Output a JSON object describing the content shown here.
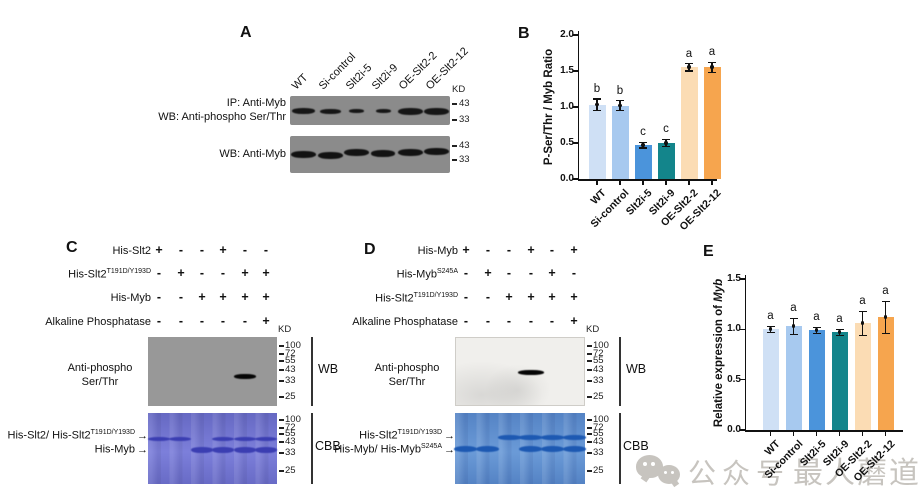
{
  "watermark": {
    "icon": "wechat-icon",
    "text_account": "公众号",
    "text_name": "最人蘑道"
  },
  "icons": {
    "arrow_right": "→"
  },
  "panel_a": {
    "letter": "A",
    "lanes": [
      "WT",
      "Si-control",
      "Slt2i-5",
      "Slt2i-9",
      "OE-Slt2-2",
      "OE-Slt2-12"
    ],
    "kd_label": "KD",
    "ip_label": "IP: Anti-Myb",
    "wb_phospho_label": "WB: Anti-phospho Ser/Thr",
    "wb_myb_label": "WB: Anti-Myb",
    "blot1_markers": [
      "43",
      "33"
    ],
    "blot2_markers": [
      "43",
      "33"
    ]
  },
  "panel_c": {
    "letter": "C",
    "kd_label": "KD",
    "rows": [
      {
        "label": "His-Slt2",
        "sup": "",
        "values": [
          "+",
          "-",
          "-",
          "+",
          "-",
          "-"
        ]
      },
      {
        "label": "His-Slt2",
        "sup": "T191D/Y193D",
        "values": [
          "-",
          "+",
          "-",
          "-",
          "+",
          "+"
        ]
      },
      {
        "label": "His-Myb",
        "sup": "",
        "values": [
          "-",
          "-",
          "+",
          "+",
          "+",
          "+"
        ]
      },
      {
        "label": "Alkaline Phosphatase",
        "sup": "",
        "values": [
          "-",
          "-",
          "-",
          "-",
          "-",
          "+"
        ]
      }
    ],
    "wb": {
      "label_line1": "Anti-phospho",
      "label_line2": "Ser/Thr",
      "side_label": "WB",
      "markers": [
        "100",
        "72",
        "55",
        "43",
        "33",
        "25"
      ],
      "band_lanes": [
        5
      ]
    },
    "cbb": {
      "side_label": "CBB",
      "markers": [
        "100",
        "72",
        "55",
        "43",
        "33",
        "25"
      ],
      "arrow1_text": "His-Slt2/ His-Slt2",
      "arrow1_sup": "T191D/Y193D",
      "arrow2_text": "His-Myb",
      "arrow2_sup": "",
      "band_lanes_upper": [
        1,
        2,
        4,
        5,
        6
      ],
      "band_lanes_lower": [
        3,
        4,
        5,
        6
      ]
    }
  },
  "panel_d": {
    "letter": "D",
    "kd_label": "KD",
    "rows": [
      {
        "label": "His-Myb",
        "sup": "",
        "values": [
          "+",
          "-",
          "-",
          "+",
          "-",
          "+"
        ]
      },
      {
        "label": "His-Myb",
        "sup": "S245A",
        "values": [
          "-",
          "+",
          "-",
          "-",
          "+",
          "-"
        ]
      },
      {
        "label": "His-Slt2",
        "sup": "T191D/Y193D",
        "values": [
          "-",
          "-",
          "+",
          "+",
          "+",
          "+"
        ]
      },
      {
        "label": "Alkaline Phosphatase",
        "sup": "",
        "values": [
          "-",
          "-",
          "-",
          "-",
          "-",
          "+"
        ]
      }
    ],
    "wb": {
      "label_line1": "Anti-phospho",
      "label_line2": "Ser/Thr",
      "side_label": "WB",
      "markers": [
        "100",
        "72",
        "55",
        "43",
        "33",
        "25"
      ],
      "band_lanes": [
        4
      ]
    },
    "cbb": {
      "side_label": "CBB",
      "markers": [
        "100",
        "72",
        "55",
        "43",
        "33",
        "25"
      ],
      "arrow1_text": "His-Slt2",
      "arrow1_sup": "T191D/Y193D",
      "arrow2_text": "His-Myb/ His-Myb",
      "arrow2_sup": "S245A",
      "band_lanes_upper": [
        3,
        4,
        5,
        6
      ],
      "band_lanes_lower": [
        1,
        2,
        4,
        5,
        6
      ]
    }
  },
  "chart_data": [
    {
      "type": "bar",
      "panel": "B",
      "title": "",
      "xlabel": "",
      "ylabel": "P-Ser/Thr / Myb Ratio",
      "categories": [
        "WT",
        "Si-control",
        "Slt2i-5",
        "Slt2i-9",
        "OE-Slt2-2",
        "OE-Slt2-12"
      ],
      "values": [
        1.03,
        1.02,
        0.47,
        0.5,
        1.55,
        1.55
      ],
      "errors": [
        0.08,
        0.07,
        0.04,
        0.05,
        0.05,
        0.07
      ],
      "sig_letters": [
        "b",
        "b",
        "c",
        "c",
        "a",
        "a"
      ],
      "bar_colors": [
        "#cfe0f5",
        "#a7c9ef",
        "#4b94db",
        "#13858b",
        "#fbdcb4",
        "#f6a54e"
      ],
      "ylim": [
        0,
        2.0
      ],
      "yticks": [
        0,
        0.5,
        1.0,
        1.5,
        2.0
      ],
      "grid": false,
      "legend": null
    },
    {
      "type": "bar",
      "panel": "E",
      "title": "",
      "xlabel": "",
      "ylabel": "Relative expression of Myb",
      "ylabel_parts": [
        "Relative expression of ",
        "Myb"
      ],
      "categories": [
        "WT",
        "Si-control",
        "Slt2i-5",
        "Slt2i-9",
        "OE-Slt2-2",
        "OE-Slt2-12"
      ],
      "values": [
        1.0,
        1.03,
        0.99,
        0.97,
        1.06,
        1.12
      ],
      "errors": [
        0.03,
        0.08,
        0.03,
        0.03,
        0.12,
        0.16
      ],
      "sig_letters": [
        "a",
        "a",
        "a",
        "a",
        "a",
        "a"
      ],
      "bar_colors": [
        "#cfe0f5",
        "#a7c9ef",
        "#4b94db",
        "#13858b",
        "#fbdcb4",
        "#f6a54e"
      ],
      "ylim": [
        0,
        1.5
      ],
      "yticks": [
        0,
        0.5,
        1.0,
        1.5
      ],
      "grid": false,
      "legend": null
    }
  ]
}
